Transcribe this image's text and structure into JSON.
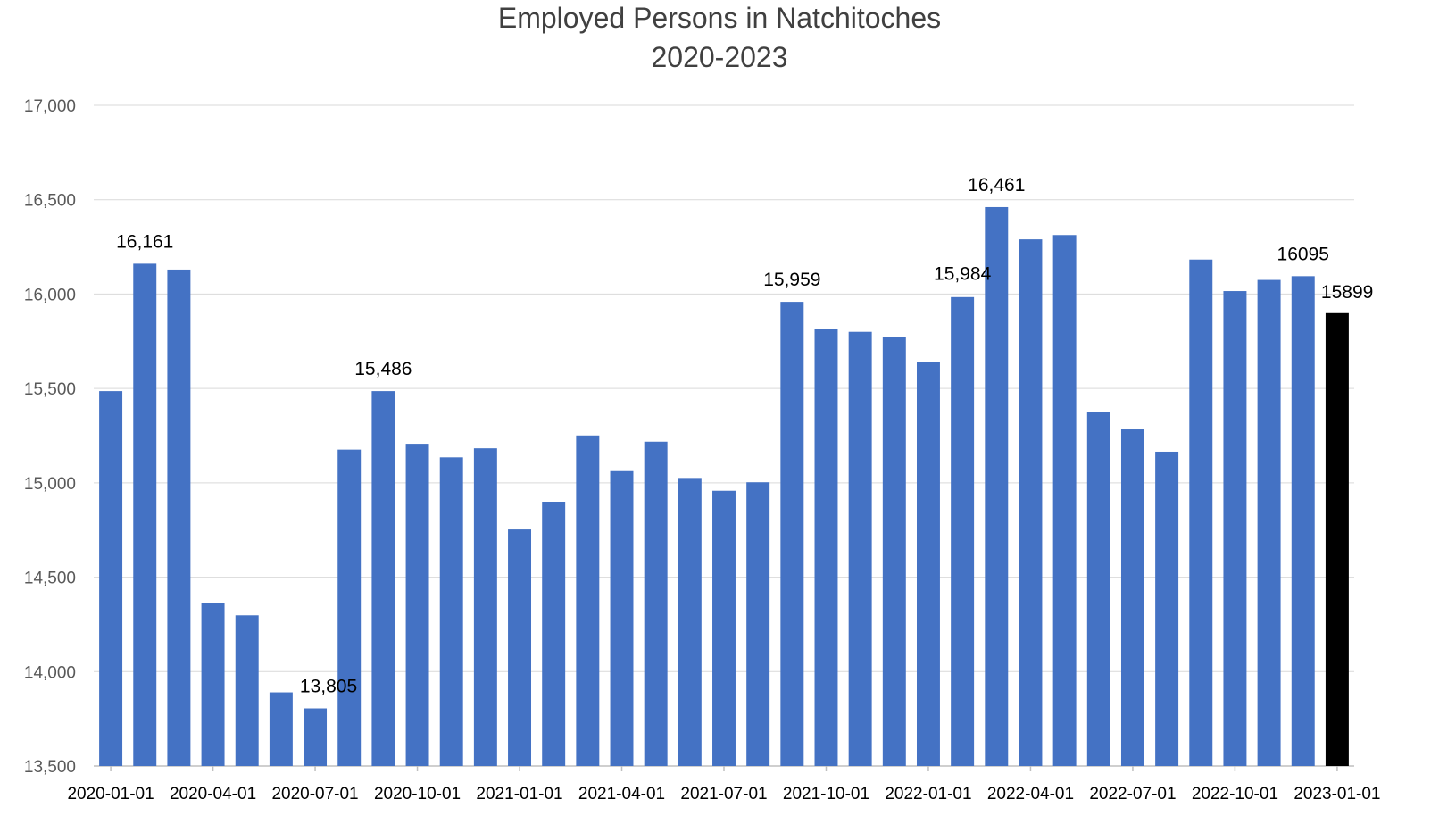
{
  "chart_data": {
    "type": "bar",
    "title": [
      "Employed Persons in Natchitoches",
      "2020-2023"
    ],
    "xlabel": "",
    "ylabel": "",
    "ylim": [
      13500,
      17000
    ],
    "y_ticks": [
      "13,500",
      "14,000",
      "14,500",
      "15,000",
      "15,500",
      "16,000",
      "16,500",
      "17,000"
    ],
    "y_tick_values": [
      13500,
      14000,
      14500,
      15000,
      15500,
      16000,
      16500,
      17000
    ],
    "x_tick_labels": [
      "2020-01-01",
      "2020-04-01",
      "2020-07-01",
      "2020-10-01",
      "2021-01-01",
      "2021-04-01",
      "2021-07-01",
      "2021-10-01",
      "2022-01-01",
      "2022-04-01",
      "2022-07-01",
      "2022-10-01",
      "2023-01-01"
    ],
    "x_tick_indices": [
      0,
      3,
      6,
      9,
      12,
      15,
      18,
      21,
      24,
      27,
      30,
      33,
      36
    ],
    "grid": true,
    "colors": {
      "bar": "#4472C4",
      "highlight": "#000000",
      "grid": "#d9d9d9",
      "axis": "#bfbfbf"
    },
    "categories": [
      "2020-01-01",
      "2020-02-01",
      "2020-03-01",
      "2020-04-01",
      "2020-05-01",
      "2020-06-01",
      "2020-07-01",
      "2020-08-01",
      "2020-09-01",
      "2020-10-01",
      "2020-11-01",
      "2020-12-01",
      "2021-01-01",
      "2021-02-01",
      "2021-03-01",
      "2021-04-01",
      "2021-05-01",
      "2021-06-01",
      "2021-07-01",
      "2021-08-01",
      "2021-09-01",
      "2021-10-01",
      "2021-11-01",
      "2021-12-01",
      "2022-01-01",
      "2022-02-01",
      "2022-03-01",
      "2022-04-01",
      "2022-05-01",
      "2022-06-01",
      "2022-07-01",
      "2022-08-01",
      "2022-09-01",
      "2022-10-01",
      "2022-11-01",
      "2022-12-01",
      "2023-01-01"
    ],
    "values": [
      15486,
      16161,
      16130,
      14362,
      14298,
      13890,
      13805,
      15176,
      15486,
      15207,
      15135,
      15183,
      14753,
      14900,
      15251,
      15062,
      15218,
      15026,
      14958,
      15003,
      15959,
      15815,
      15800,
      15775,
      15641,
      15984,
      16461,
      16290,
      16313,
      15376,
      15283,
      15165,
      16183,
      16016,
      16075,
      16095,
      15899
    ],
    "highlight_indices": [
      36
    ],
    "data_labels": [
      {
        "index": 1,
        "text": "16,161"
      },
      {
        "index": 6,
        "text": "13,805"
      },
      {
        "index": 8,
        "text": "15,486"
      },
      {
        "index": 20,
        "text": "15,959"
      },
      {
        "index": 25,
        "text": "15,984"
      },
      {
        "index": 26,
        "text": "16,461"
      },
      {
        "index": 35,
        "text": "16095"
      },
      {
        "index": 36,
        "text": "15899"
      }
    ]
  }
}
